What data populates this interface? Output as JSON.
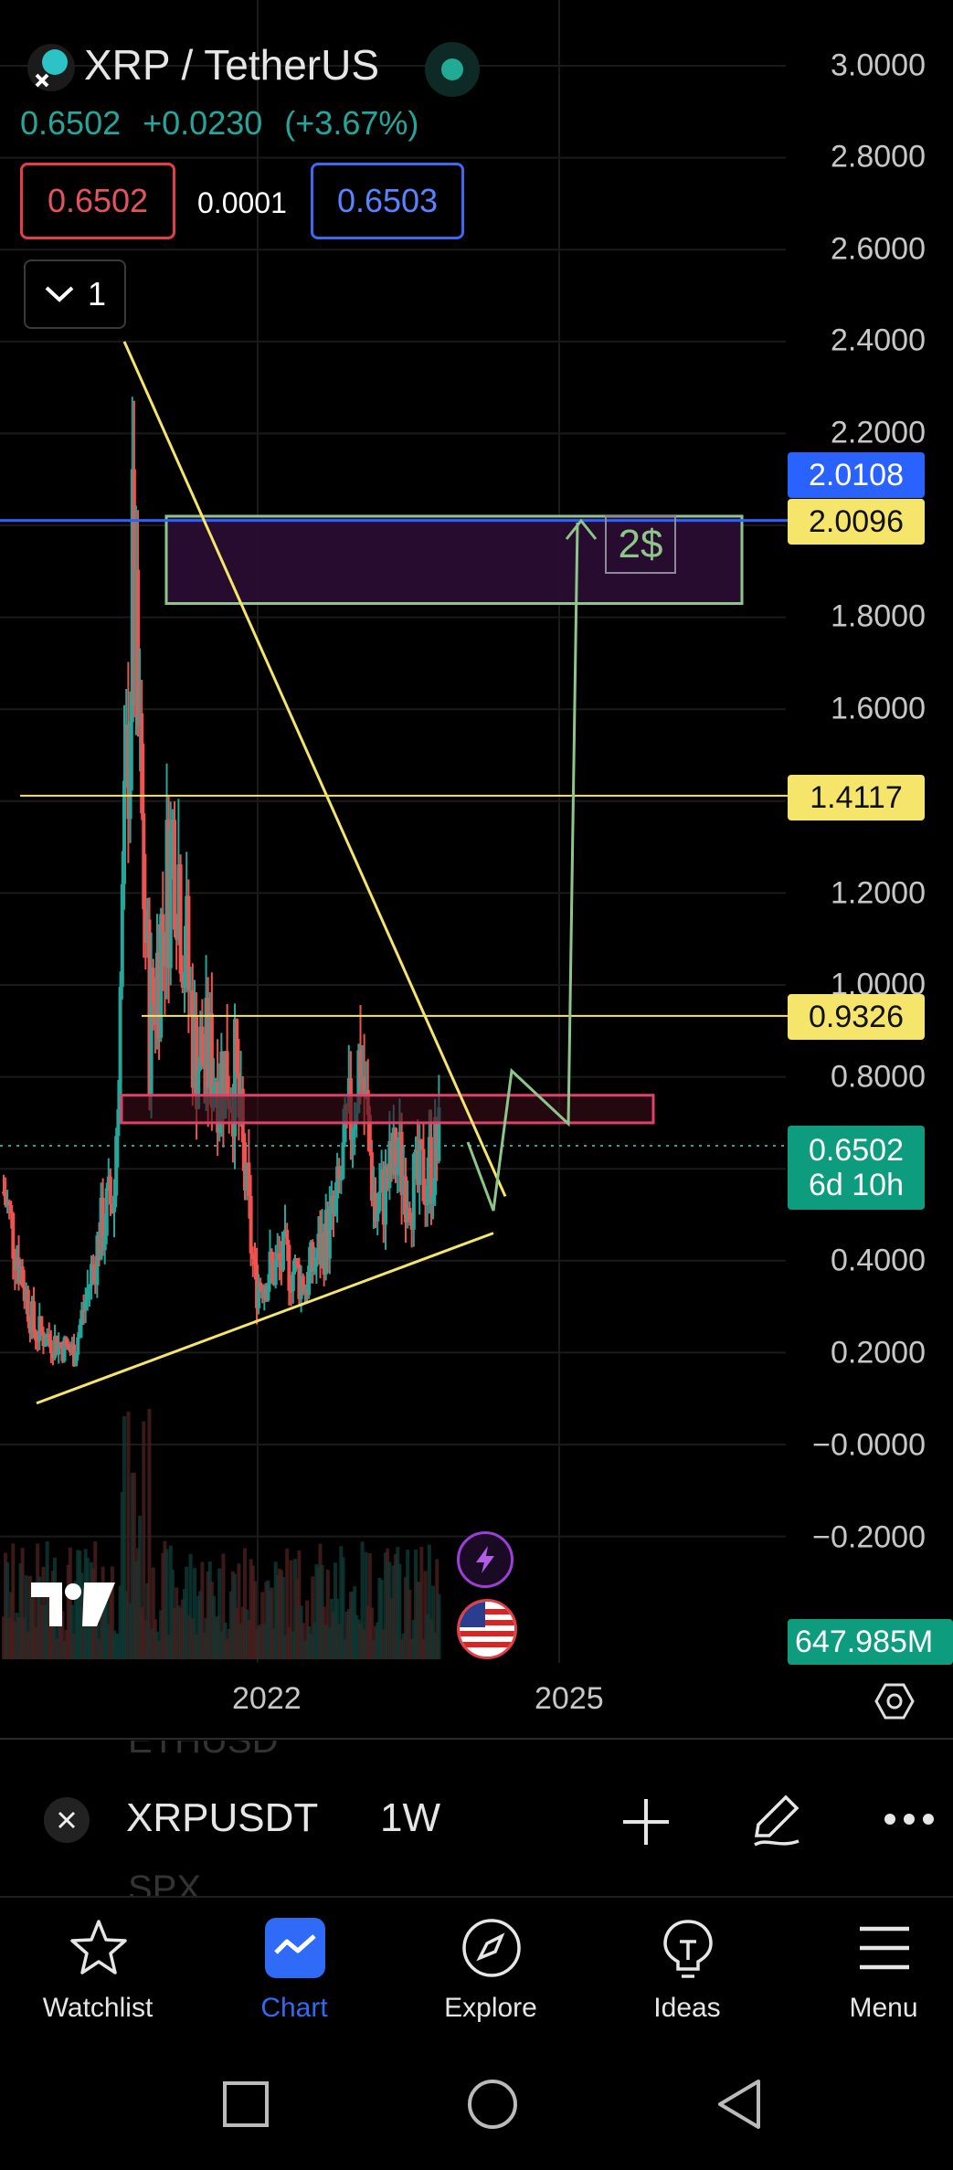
{
  "symbol_title": "XRP / TetherUS",
  "price": {
    "last": "0.6502",
    "change": "+0.0230",
    "change_pct": "(+3.67%)"
  },
  "bid": "0.6502",
  "spread": "0.0001",
  "ask": "0.6503",
  "collapse_count": "1",
  "price_axis": [
    "3.0000",
    "2.8000",
    "2.6000",
    "2.4000",
    "2.2000",
    "1.8000",
    "1.6000",
    "1.2000",
    "1.0000",
    "0.8000",
    "0.4000",
    "0.2000",
    "−0.0000",
    "−0.2000"
  ],
  "price_labels": {
    "top_blue": "2.0108",
    "target": "2.0096",
    "level_1": "1.4117",
    "level_2": "0.9326",
    "current": "0.6502",
    "countdown": "6d 10h",
    "volume": "647.985M"
  },
  "annotation": "2$",
  "x_axis": [
    "2022",
    "2025"
  ],
  "symbol_bar": {
    "ghost_above": "ETHUSD",
    "ghost_below": "SPX",
    "ticker": "XRPUSDT",
    "interval": "1W"
  },
  "bottom_nav": [
    {
      "label": "Watchlist",
      "icon": "star-icon"
    },
    {
      "label": "Chart",
      "icon": "chart-icon",
      "active": true
    },
    {
      "label": "Explore",
      "icon": "compass-icon"
    },
    {
      "label": "Ideas",
      "icon": "lightbulb-icon"
    },
    {
      "label": "Menu",
      "icon": "hamburger-icon"
    }
  ],
  "colors": {
    "up": "#26a69a",
    "down": "#ef5350",
    "accent": "#2f6bf6",
    "level_line": "#f5e56b",
    "target_box": "#8ec68a"
  },
  "chart_data": {
    "type": "candlestick",
    "timeframe": "1W",
    "x_ticks": [
      "2022",
      "2025"
    ],
    "ylim": [
      -0.2,
      3.0
    ],
    "horizontal_levels": [
      2.0108,
      2.0096,
      1.4117,
      0.9326
    ],
    "current_price": 0.6502,
    "zones": [
      {
        "name": "target-zone",
        "from": 1.83,
        "to": 2.02,
        "color": "#5a1a5a"
      },
      {
        "name": "resistance-zone",
        "from": 0.7,
        "to": 0.76,
        "color": "#e0406a"
      }
    ],
    "projection_path": [
      [
        2024.35,
        0.55
      ],
      [
        2024.55,
        0.82
      ],
      [
        2024.95,
        0.7
      ],
      [
        2025.1,
        2.02
      ]
    ],
    "price_path": [
      [
        2020.0,
        0.55
      ],
      [
        2020.3,
        0.25
      ],
      [
        2020.7,
        0.2
      ],
      [
        2020.95,
        0.45
      ],
      [
        2021.1,
        0.55
      ],
      [
        2021.28,
        1.85
      ],
      [
        2021.45,
        0.9
      ],
      [
        2021.7,
        1.35
      ],
      [
        2021.9,
        0.85
      ],
      [
        2022.3,
        0.8
      ],
      [
        2022.5,
        0.35
      ],
      [
        2022.8,
        0.4
      ],
      [
        2023.0,
        0.35
      ],
      [
        2023.3,
        0.5
      ],
      [
        2023.55,
        0.85
      ],
      [
        2023.7,
        0.5
      ],
      [
        2023.9,
        0.62
      ],
      [
        2024.1,
        0.55
      ],
      [
        2024.35,
        0.65
      ]
    ]
  }
}
